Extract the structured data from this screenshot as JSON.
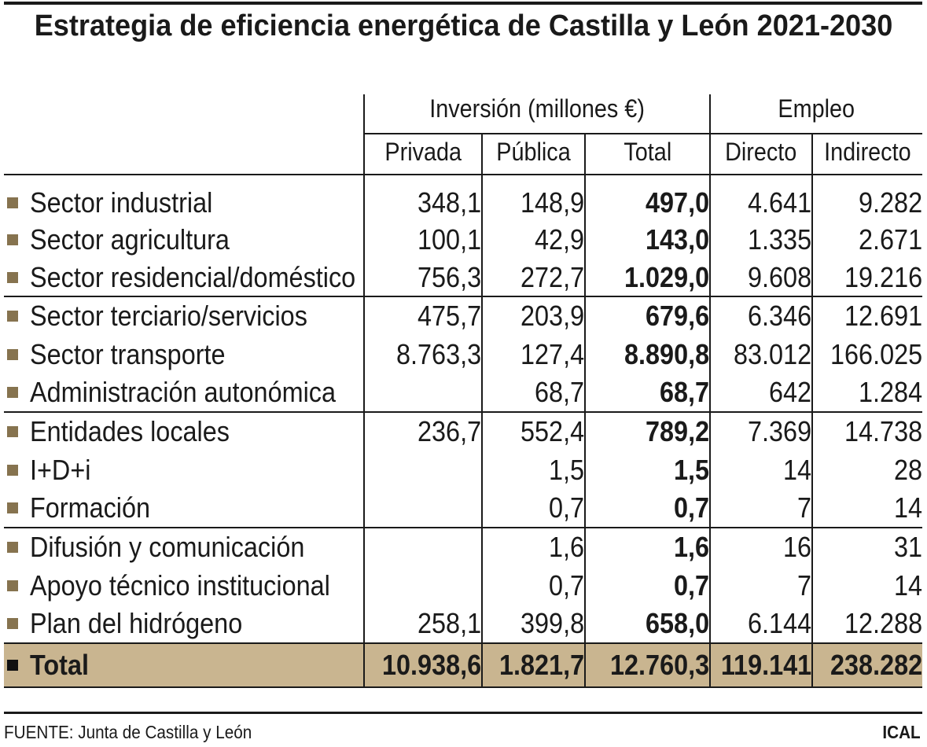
{
  "colors": {
    "rule": "#1a1a1a",
    "bullet": "#86734f",
    "total_bullet": "#111111",
    "total_background": "#c9b590"
  },
  "chart_data": {
    "type": "table",
    "title": "Estrategia de eficiencia energética de Castilla y León 2021-2030",
    "column_groups": [
      "Inversión (millones €)",
      "Empleo"
    ],
    "columns": [
      "Privada",
      "Pública",
      "Total",
      "Directo",
      "Indirecto"
    ],
    "rows": [
      {
        "label": "Sector industrial",
        "values": [
          "348,1",
          "148,9",
          "497,0",
          "4.641",
          "9.282"
        ]
      },
      {
        "label": "Sector agricultura",
        "values": [
          "100,1",
          "42,9",
          "143,0",
          "1.335",
          "2.671"
        ]
      },
      {
        "label": "Sector residencial/doméstico",
        "values": [
          "756,3",
          "272,7",
          "1.029,0",
          "9.608",
          "19.216"
        ]
      },
      {
        "label": "Sector terciario/servicios",
        "values": [
          "475,7",
          "203,9",
          "679,6",
          "6.346",
          "12.691"
        ]
      },
      {
        "label": "Sector transporte",
        "values": [
          "8.763,3",
          "127,4",
          "8.890,8",
          "83.012",
          "166.025"
        ]
      },
      {
        "label": "Administración autonómica",
        "values": [
          "",
          "68,7",
          "68,7",
          "642",
          "1.284"
        ]
      },
      {
        "label": "Entidades locales",
        "values": [
          "236,7",
          "552,4",
          "789,2",
          "7.369",
          "14.738"
        ]
      },
      {
        "label": "I+D+i",
        "values": [
          "",
          "1,5",
          "1,5",
          "14",
          "28"
        ]
      },
      {
        "label": "Formación",
        "values": [
          "",
          "0,7",
          "0,7",
          "7",
          "14"
        ]
      },
      {
        "label": "Difusión y comunicación",
        "values": [
          "",
          "1,6",
          "1,6",
          "16",
          "31"
        ]
      },
      {
        "label": "Apoyo técnico institucional",
        "values": [
          "",
          "0,7",
          "0,7",
          "7",
          "14"
        ]
      },
      {
        "label": "Plan del hidrógeno",
        "values": [
          "258,1",
          "399,8",
          "658,0",
          "6.144",
          "12.288"
        ]
      }
    ],
    "total": {
      "label": "Total",
      "values": [
        "10.938,6",
        "1.821,7",
        "12.760,3",
        "119.141",
        "238.282"
      ]
    }
  },
  "footer": {
    "source": "FUENTE: Junta de Castilla y León",
    "credit": "ICAL"
  }
}
